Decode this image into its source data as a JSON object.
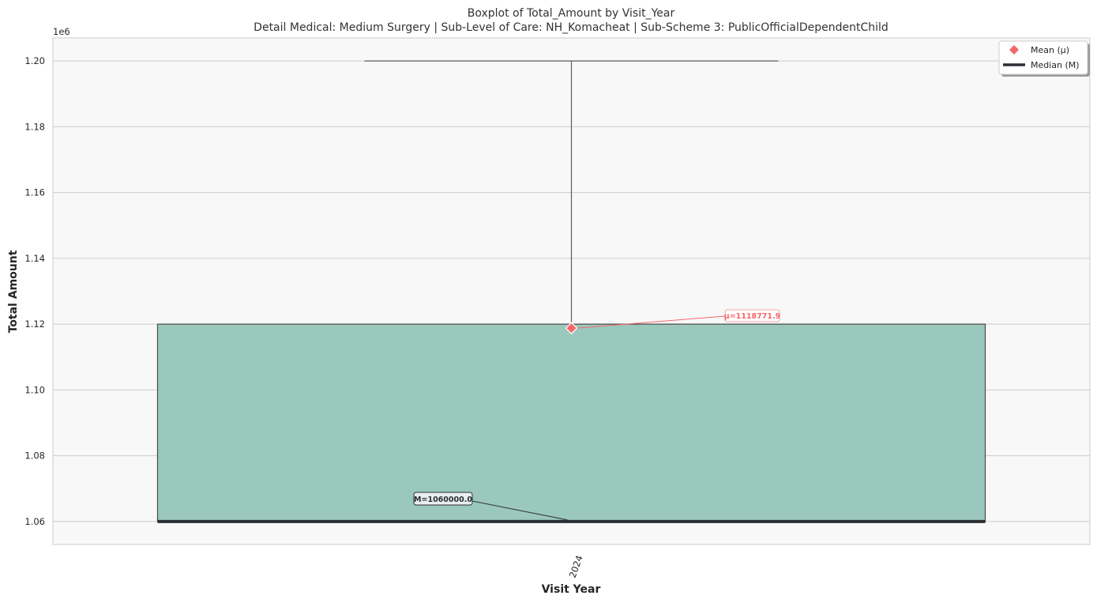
{
  "chart_data": {
    "type": "boxplot",
    "title": "Boxplot of Total_Amount by Visit_Year",
    "subtitle": "Detail Medical: Medium Surgery | Sub-Level of Care: NH_Komacheat | Sub-Scheme 3: PublicOfficialDependentChild",
    "xlabel": "Visit Year",
    "ylabel": "Total Amount",
    "y_offset_label": "1e6",
    "categories": [
      "2024"
    ],
    "boxes": [
      {
        "category": "2024",
        "whisker_low": 1060000,
        "q1": 1060000,
        "median": 1060000,
        "q3": 1120000,
        "whisker_high": 1200000,
        "mean": 1118771.9
      }
    ],
    "y_ticks": [
      1060000,
      1080000,
      1100000,
      1120000,
      1140000,
      1160000,
      1180000,
      1200000
    ],
    "y_tick_labels": [
      "1.06",
      "1.08",
      "1.10",
      "1.12",
      "1.14",
      "1.16",
      "1.18",
      "1.20"
    ],
    "ylim": [
      1053000,
      1207000
    ],
    "grid": true,
    "annotations": {
      "mean_label": "μ=1118771.9",
      "median_label": "M=1060000.0"
    },
    "legend": {
      "position": "top-right",
      "items": [
        {
          "label": "Mean (μ)",
          "marker": "diamond"
        },
        {
          "label": "Median (M)",
          "marker": "line"
        }
      ]
    },
    "colors": {
      "box_fill": "#9BC8BC",
      "box_edge": "#4a4a4a",
      "median": "#2b2f33",
      "mean": "#f4686b",
      "whisker": "#5a5f63",
      "plot_bg": "#f8f8f8",
      "grid": "#cccccc"
    }
  }
}
